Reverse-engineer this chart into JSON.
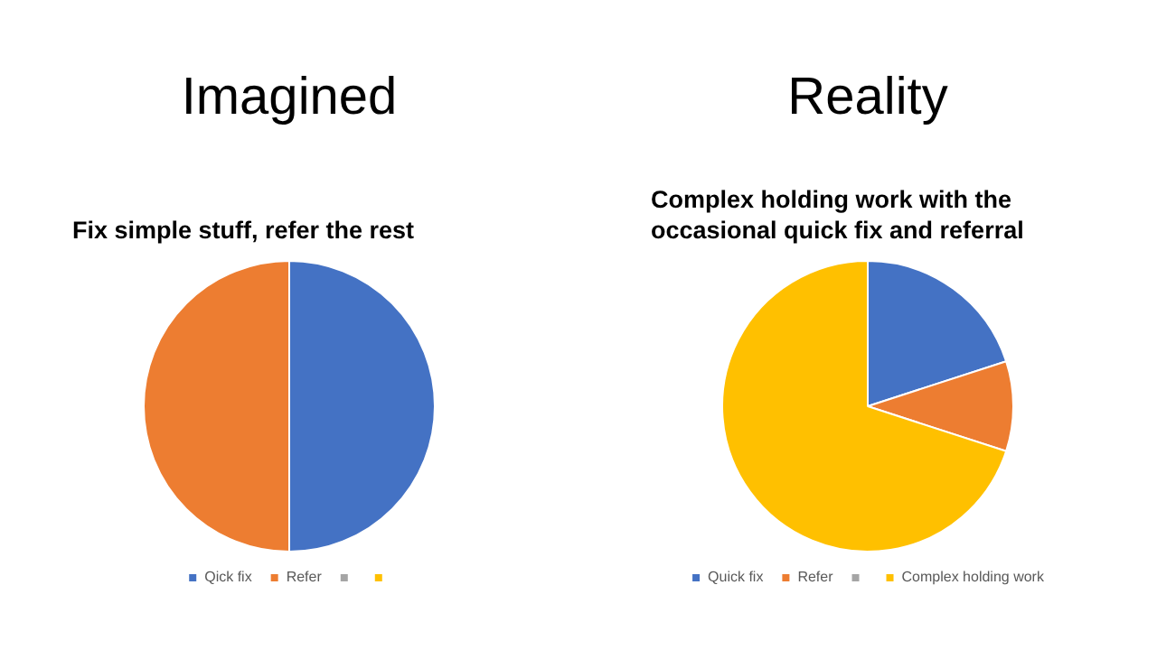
{
  "chart_data": [
    {
      "type": "pie",
      "title": "Imagined",
      "subtitle": "Fix simple stuff, refer the rest",
      "categories": [
        "Qick fix",
        "Refer",
        null,
        null
      ],
      "values": [
        50,
        50,
        0,
        0
      ],
      "colors": [
        "#4472c4",
        "#ed7d31",
        "#a5a5a5",
        "#ffc000"
      ],
      "legend": "bottom"
    },
    {
      "type": "pie",
      "title": "Reality",
      "subtitle": "Complex holding work with the occasional quick fix and referral",
      "categories": [
        "Quick fix",
        "Refer",
        null,
        "Complex holding work"
      ],
      "values": [
        20,
        10,
        0,
        70
      ],
      "colors": [
        "#4472c4",
        "#ed7d31",
        "#a5a5a5",
        "#ffc000"
      ],
      "legend": "bottom"
    }
  ]
}
